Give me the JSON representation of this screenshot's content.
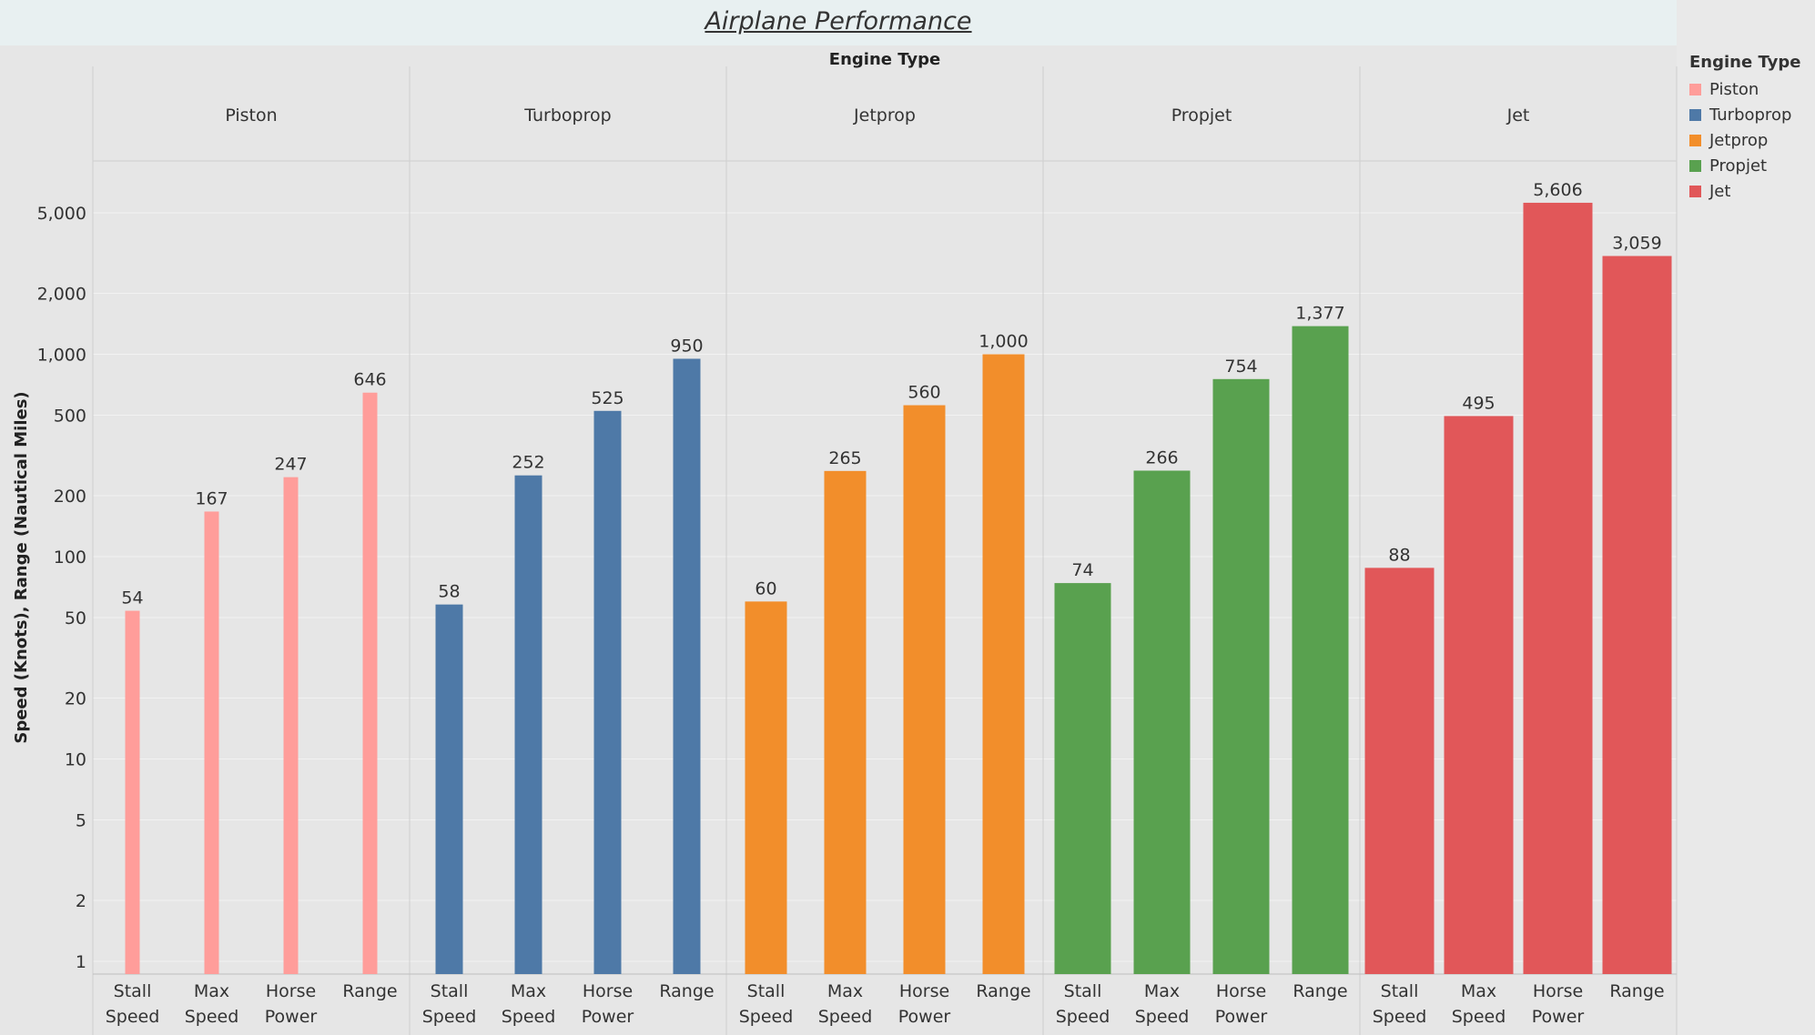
{
  "title": "Airplane Performance",
  "chart_data": {
    "type": "bar",
    "facet_header": "Engine Type",
    "ylabel": "Speed (Knots), Range (Nautical Miles)",
    "yscale": "log",
    "ylim": [
      0.8,
      8000
    ],
    "yticks": [
      1,
      2,
      5,
      10,
      20,
      50,
      100,
      200,
      500,
      1000,
      2000,
      5000
    ],
    "ytick_labels": [
      "1",
      "2",
      "5",
      "10",
      "20",
      "50",
      "100",
      "200",
      "500",
      "1,000",
      "2,000",
      "5,000"
    ],
    "categories": [
      "Stall Speed",
      "Max Speed",
      "Horse Power",
      "Range"
    ],
    "category_labels": [
      [
        "Stall",
        "Speed"
      ],
      [
        "Max",
        "Speed"
      ],
      [
        "Horse",
        "Power"
      ],
      [
        "Range"
      ]
    ],
    "panels": [
      {
        "name": "Piston",
        "color": "#ff9d9a",
        "values": [
          54,
          167,
          247,
          646
        ],
        "labels": [
          "54",
          "167",
          "247",
          "646"
        ]
      },
      {
        "name": "Turboprop",
        "color": "#4e79a7",
        "values": [
          58,
          252,
          525,
          950
        ],
        "labels": [
          "58",
          "252",
          "525",
          "950"
        ]
      },
      {
        "name": "Jetprop",
        "color": "#f28e2b",
        "values": [
          60,
          265,
          560,
          1000
        ],
        "labels": [
          "60",
          "265",
          "560",
          "1,000"
        ]
      },
      {
        "name": "Propjet",
        "color": "#59a14f",
        "values": [
          74,
          266,
          754,
          1377
        ],
        "labels": [
          "74",
          "266",
          "754",
          "1,377"
        ]
      },
      {
        "name": "Jet",
        "color": "#e15759",
        "values": [
          88,
          495,
          5606,
          3059
        ],
        "labels": [
          "88",
          "495",
          "5,606",
          "3,059"
        ]
      }
    ],
    "legend": {
      "title": "Engine Type",
      "items": [
        {
          "name": "Piston",
          "color": "#ff9d9a"
        },
        {
          "name": "Turboprop",
          "color": "#4e79a7"
        },
        {
          "name": "Jetprop",
          "color": "#f28e2b"
        },
        {
          "name": "Propjet",
          "color": "#59a14f"
        },
        {
          "name": "Jet",
          "color": "#e15759"
        }
      ]
    }
  }
}
